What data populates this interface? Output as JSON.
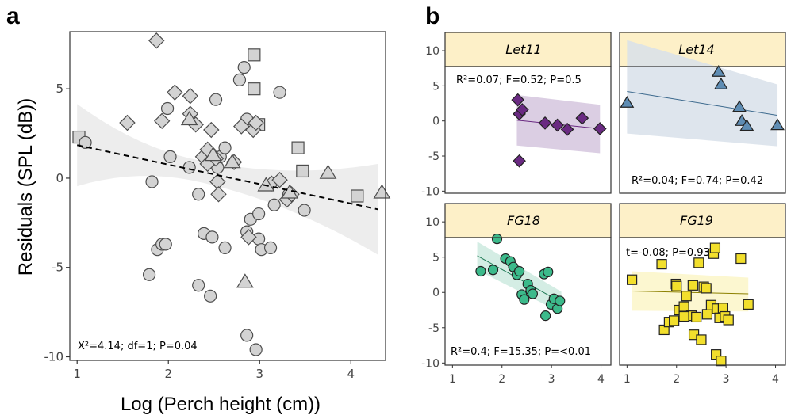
{
  "panel_labels": {
    "a": "a",
    "b": "b"
  },
  "chart_data": [
    {
      "type": "scatter",
      "panel": "a",
      "xlabel": "Log (Perch height (cm))",
      "ylabel": "Residuals (SPL (dB))",
      "xlim": [
        0.92,
        4.38
      ],
      "ylim": [
        -10.2,
        8.2
      ],
      "xticks": [
        "1",
        "2",
        "3",
        "4"
      ],
      "yticks": [
        "5",
        "0",
        "-5",
        "-10"
      ],
      "annotation": "X²=4.14; df=1; P=0.04",
      "style": {
        "fill": "#d3d3d3",
        "stroke": "#4d4d4d",
        "fit_line": "dashed",
        "ribbon": "#ebebeb"
      },
      "fit": {
        "x": [
          1.0,
          4.3
        ],
        "y": [
          1.85,
          -1.75
        ],
        "ribbon_half_width": [
          2.3,
          2.55
        ],
        "ribbon_min_half_width": 0.6,
        "ribbon_center_x": 2.3
      },
      "series": [
        {
          "marker": "square",
          "points": [
            [
              1.02,
              2.3
            ],
            [
              2.94,
              6.9
            ],
            [
              2.94,
              5.0
            ],
            [
              2.99,
              3.0
            ],
            [
              3.42,
              1.7
            ],
            [
              3.47,
              0.4
            ],
            [
              4.07,
              -1.0
            ]
          ]
        },
        {
          "marker": "circle",
          "points": [
            [
              1.09,
              2.0
            ],
            [
              1.82,
              -0.2
            ],
            [
              1.79,
              -5.4
            ],
            [
              1.88,
              -4.0
            ],
            [
              1.93,
              -3.7
            ],
            [
              1.97,
              -3.7
            ],
            [
              1.99,
              3.9
            ],
            [
              2.02,
              1.2
            ],
            [
              2.23,
              0.6
            ],
            [
              2.33,
              -6.0
            ],
            [
              2.39,
              -3.1
            ],
            [
              2.46,
              -6.6
            ],
            [
              2.48,
              -3.3
            ],
            [
              2.52,
              4.4
            ],
            [
              2.54,
              0.6
            ],
            [
              2.57,
              1.2
            ],
            [
              2.62,
              -3.9
            ],
            [
              2.78,
              5.5
            ],
            [
              2.83,
              6.2
            ],
            [
              2.86,
              3.3
            ],
            [
              2.86,
              -3.0
            ],
            [
              2.86,
              -8.8
            ],
            [
              2.9,
              -2.3
            ],
            [
              2.96,
              -9.6
            ],
            [
              2.99,
              -2.0
            ],
            [
              2.99,
              -3.4
            ],
            [
              3.02,
              -4.0
            ],
            [
              3.12,
              -3.9
            ],
            [
              3.16,
              -1.5
            ],
            [
              3.22,
              4.8
            ],
            [
              3.32,
              -0.9
            ],
            [
              3.49,
              -1.8
            ],
            [
              2.33,
              -0.9
            ],
            [
              2.62,
              1.7
            ]
          ]
        },
        {
          "marker": "diamond",
          "points": [
            [
              1.55,
              3.1
            ],
            [
              1.87,
              7.7
            ],
            [
              1.93,
              3.2
            ],
            [
              2.07,
              4.8
            ],
            [
              2.24,
              4.6
            ],
            [
              2.24,
              3.6
            ],
            [
              2.3,
              3.0
            ],
            [
              2.38,
              1.2
            ],
            [
              2.43,
              1.6
            ],
            [
              2.43,
              0.8
            ],
            [
              2.47,
              2.7
            ],
            [
              2.52,
              1.1
            ],
            [
              2.54,
              -0.2
            ],
            [
              2.55,
              -0.9
            ],
            [
              2.72,
              0.9
            ],
            [
              2.8,
              2.9
            ],
            [
              2.88,
              -3.3
            ],
            [
              2.93,
              2.7
            ],
            [
              2.96,
              3.1
            ],
            [
              3.13,
              -0.3
            ],
            [
              3.22,
              -0.1
            ],
            [
              3.3,
              -1.2
            ],
            [
              3.35,
              -0.9
            ]
          ]
        },
        {
          "marker": "triangle",
          "points": [
            [
              2.23,
              3.3
            ],
            [
              2.49,
              1.3
            ],
            [
              2.7,
              0.9
            ],
            [
              2.84,
              -5.8
            ],
            [
              3.33,
              -0.8
            ],
            [
              3.75,
              0.3
            ],
            [
              4.34,
              -0.8
            ],
            [
              3.07,
              -0.4
            ]
          ]
        }
      ]
    },
    {
      "type": "scatter",
      "panel": "b",
      "title": "Let11",
      "annotation": "R²=0.07; F=0.52; P=0.5",
      "xlim": [
        0.85,
        4.2
      ],
      "ylim": [
        -10.3,
        12.6
      ],
      "marker": "diamond",
      "color": "#6a2a82",
      "fill": "#6a2a82",
      "ribbon": "#d5c6de",
      "x": [
        2.32,
        2.35,
        2.41,
        2.35,
        2.87,
        3.12,
        3.32,
        3.62,
        3.98
      ],
      "y": [
        3.0,
        1.0,
        1.6,
        -5.7,
        -0.3,
        -0.6,
        -1.2,
        0.4,
        -1.1
      ],
      "fit": {
        "x": [
          2.3,
          3.98
        ],
        "y": [
          0.1,
          -1.1
        ],
        "lower": [
          -3.5,
          -4.6
        ],
        "upper": [
          3.7,
          2.3
        ]
      }
    },
    {
      "type": "scatter",
      "panel": "b",
      "title": "Let14",
      "annotation": "R²=0.04; F=0.74; P=0.42",
      "xlim": [
        0.85,
        4.2
      ],
      "ylim": [
        -10.3,
        12.6
      ],
      "marker": "triangle",
      "color": "#3d6a8e",
      "fill": "#5f8db4",
      "ribbon": "#d8e1ea",
      "x": [
        1.0,
        2.85,
        2.9,
        3.27,
        3.32,
        3.42,
        4.04
      ],
      "y": [
        2.6,
        7.0,
        5.2,
        2.0,
        0.0,
        -0.7,
        -0.6
      ],
      "fit": {
        "x": [
          1.0,
          4.04
        ],
        "y": [
          4.2,
          0.8
        ],
        "lower": [
          -1.8,
          -3.6
        ],
        "upper": [
          11.5,
          5.2
        ]
      }
    },
    {
      "type": "scatter",
      "panel": "b",
      "title": "FG18",
      "annotation": "R²=0.4; F=15.35; P=<0.01",
      "xlim": [
        0.85,
        4.2
      ],
      "ylim": [
        -10.3,
        12.6
      ],
      "marker": "circle",
      "color": "#1f7a55",
      "fill": "#3cba8b",
      "ribbon": "#cdeadf",
      "x": [
        1.57,
        1.82,
        1.9,
        2.07,
        2.17,
        2.23,
        2.3,
        2.35,
        2.4,
        2.45,
        2.52,
        2.58,
        2.62,
        2.85,
        2.88,
        2.93,
        2.99,
        3.05,
        3.12,
        3.17
      ],
      "y": [
        3.0,
        3.2,
        7.6,
        4.8,
        4.4,
        3.6,
        2.5,
        3.0,
        -0.3,
        -1.0,
        1.2,
        0.3,
        -0.2,
        2.6,
        -3.3,
        2.9,
        -1.7,
        -0.9,
        -2.3,
        -1.2
      ],
      "fit": {
        "x": [
          1.5,
          3.2
        ],
        "y": [
          5.2,
          -1.4
        ],
        "lower": [
          3.2,
          -2.9
        ],
        "upper": [
          7.2,
          0.1
        ]
      }
    },
    {
      "type": "scatter",
      "panel": "b",
      "title": "FG19",
      "annotation": "t=-0.08; P=0.93",
      "xlim": [
        0.85,
        4.2
      ],
      "ylim": [
        -10.3,
        12.6
      ],
      "marker": "square",
      "color": "#8c8000",
      "fill": "#f2df2c",
      "ribbon": "#fbf6c8",
      "x": [
        1.1,
        1.7,
        1.75,
        1.85,
        1.95,
        1.99,
        2.0,
        2.05,
        2.15,
        2.2,
        2.3,
        2.35,
        2.4,
        2.45,
        2.5,
        2.55,
        2.6,
        2.62,
        2.7,
        2.75,
        2.78,
        2.8,
        2.82,
        2.87,
        2.9,
        2.94,
        2.98,
        3.05,
        3.3,
        3.45,
        2.33,
        2.15
      ],
      "y": [
        1.8,
        4.0,
        -5.3,
        -4.2,
        -4.0,
        1.2,
        0.9,
        -2.5,
        -2.0,
        -0.5,
        -3.3,
        -6.0,
        -3.5,
        4.2,
        -6.7,
        0.8,
        0.6,
        -3.1,
        -1.8,
        5.5,
        6.3,
        -8.8,
        -2.3,
        -3.6,
        -9.7,
        -2.2,
        -3.4,
        -3.9,
        4.8,
        -1.7,
        1.0,
        -3.4
      ],
      "fit": {
        "x": [
          1.1,
          3.45
        ],
        "y": [
          0.2,
          -0.2
        ],
        "lower": [
          -2.6,
          -2.7
        ],
        "upper": [
          3.0,
          2.1
        ]
      }
    }
  ],
  "panel_b_axes": {
    "xticks": [
      "1",
      "2",
      "3",
      "4"
    ],
    "yticks": [
      "10",
      "5",
      "0",
      "-5",
      "-10"
    ]
  }
}
